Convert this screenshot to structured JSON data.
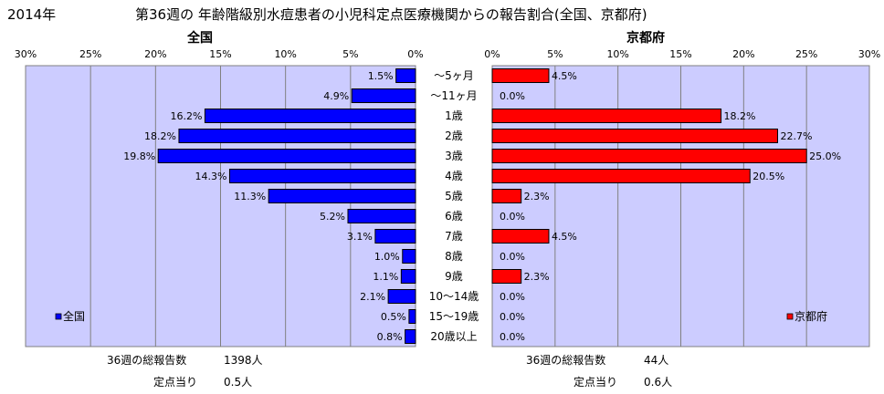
{
  "header": {
    "year": "2014年",
    "title": "第36週の 年齢階級別水痘患者の小児科定点医療機関からの報告割合(全国、京都府)"
  },
  "chart_data": [
    {
      "type": "bar",
      "orientation": "horizontal",
      "direction": "right-to-left",
      "title": "全国",
      "categories": [
        "～5ヶ月",
        "～11ヶ月",
        "1歳",
        "2歳",
        "3歳",
        "4歳",
        "5歳",
        "6歳",
        "7歳",
        "8歳",
        "9歳",
        "10～14歳",
        "15～19歳",
        "20歳以上"
      ],
      "series": [
        {
          "name": "全国",
          "values": [
            1.5,
            4.9,
            16.2,
            18.2,
            19.8,
            14.3,
            11.3,
            5.2,
            3.1,
            1.0,
            1.1,
            2.1,
            0.5,
            0.8
          ],
          "labels": [
            "1.5%",
            "4.9%",
            "16.2%",
            "18.2%",
            "19.8%",
            "14.3%",
            "11.3%",
            "5.2%",
            "3.1%",
            "1.0%",
            "1.1%",
            "2.1%",
            "0.5%",
            "0.8%"
          ],
          "color": "#0000ff"
        }
      ],
      "xlim": [
        0,
        30
      ],
      "xticks": [
        "30%",
        "25%",
        "20%",
        "15%",
        "10%",
        "5%",
        "0%"
      ],
      "grid": true,
      "legend": "bottom-left"
    },
    {
      "type": "bar",
      "orientation": "horizontal",
      "direction": "left-to-right",
      "title": "京都府",
      "categories": [
        "～5ヶ月",
        "～11ヶ月",
        "1歳",
        "2歳",
        "3歳",
        "4歳",
        "5歳",
        "6歳",
        "7歳",
        "8歳",
        "9歳",
        "10～14歳",
        "15～19歳",
        "20歳以上"
      ],
      "series": [
        {
          "name": "京都府",
          "values": [
            4.5,
            0.0,
            18.2,
            22.7,
            25.0,
            20.5,
            2.3,
            0.0,
            4.5,
            0.0,
            2.3,
            0.0,
            0.0,
            0.0
          ],
          "labels": [
            "4.5%",
            "0.0%",
            "18.2%",
            "22.7%",
            "25.0%",
            "20.5%",
            "2.3%",
            "0.0%",
            "4.5%",
            "0.0%",
            "2.3%",
            "0.0%",
            "0.0%",
            "0.0%"
          ],
          "color": "#ff0000"
        }
      ],
      "xlim": [
        0,
        30
      ],
      "xticks": [
        "0%",
        "5%",
        "10%",
        "15%",
        "20%",
        "25%",
        "30%"
      ],
      "grid": true,
      "legend": "bottom-right"
    }
  ],
  "footer": {
    "national": {
      "total_label": "36週の総報告数",
      "total_value": "1398人",
      "per_label": "定点当り",
      "per_value": "0.5人"
    },
    "kyoto": {
      "total_label": "36週の総報告数",
      "total_value": "44人",
      "per_label": "定点当り",
      "per_value": "0.6人"
    }
  }
}
